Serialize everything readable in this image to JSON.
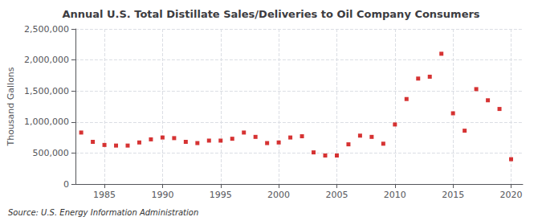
{
  "chart_data": {
    "type": "scatter",
    "title": "Annual U.S. Total Distillate Sales/Deliveries to Oil Company Consumers",
    "ylabel": "Thousand Gallons",
    "source": "Source: U.S. Energy Information Administration",
    "x": [
      1983,
      1984,
      1985,
      1986,
      1987,
      1988,
      1989,
      1990,
      1991,
      1992,
      1993,
      1994,
      1995,
      1996,
      1997,
      1998,
      1999,
      2000,
      2001,
      2002,
      2003,
      2004,
      2005,
      2006,
      2007,
      2008,
      2009,
      2010,
      2011,
      2012,
      2013,
      2014,
      2015,
      2016,
      2017,
      2018,
      2019,
      2020
    ],
    "values": [
      830000,
      680000,
      630000,
      620000,
      620000,
      670000,
      720000,
      750000,
      740000,
      680000,
      660000,
      700000,
      700000,
      730000,
      830000,
      760000,
      660000,
      670000,
      750000,
      770000,
      510000,
      460000,
      460000,
      640000,
      780000,
      760000,
      650000,
      960000,
      1370000,
      1700000,
      1730000,
      2100000,
      1140000,
      860000,
      1530000,
      1350000,
      1210000,
      400000
    ],
    "color": "#cc0000",
    "marker": "square",
    "xlim": [
      1982.5,
      2021
    ],
    "xticks": [
      1985,
      1990,
      1995,
      2000,
      2005,
      2010,
      2015,
      2020
    ],
    "ylim": [
      0,
      2500000
    ],
    "yticks": [
      0,
      {
        "value": 500000,
        "label": "500,000"
      },
      {
        "value": 1000000,
        "label": "1,000,000"
      },
      {
        "value": 1500000,
        "label": "1,500,000"
      },
      {
        "value": 2000000,
        "label": "2,000,000"
      },
      {
        "value": 2500000,
        "label": "2,500,000"
      }
    ],
    "grid": true
  }
}
